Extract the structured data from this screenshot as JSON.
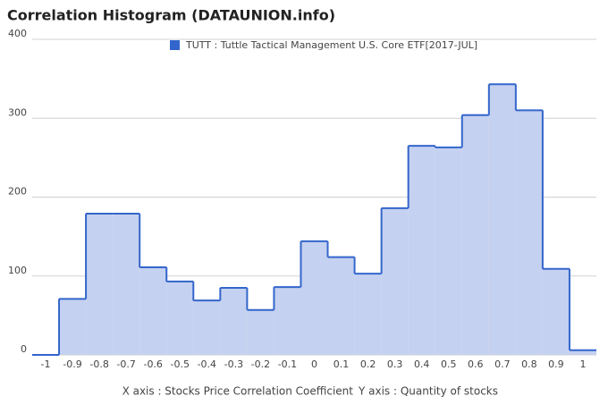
{
  "chart_data": {
    "type": "histogram",
    "title": "Correlation Histogram (DATAUNION.info)",
    "x_label": "X axis : Stocks Price Correlation Coefficient",
    "y_label": "Y axis : Quantity of stocks",
    "series": [
      {
        "name": "TUTT : Tuttle Tactical Management U.S. Core ETF[2017-JUL]",
        "color": "#3366cc",
        "fill": "#c5d1f0",
        "bins": [
          -1.05,
          -0.95,
          -0.85,
          -0.75,
          -0.65,
          -0.55,
          -0.45,
          -0.35,
          -0.25,
          -0.15,
          -0.05,
          0.05,
          0.15,
          0.25,
          0.35,
          0.45,
          0.55,
          0.65,
          0.75,
          0.85,
          0.95,
          1.05
        ],
        "counts": [
          0,
          71,
          179,
          179,
          111,
          93,
          69,
          85,
          57,
          86,
          144,
          124,
          103,
          186,
          265,
          263,
          304,
          343,
          310,
          109,
          6
        ]
      }
    ],
    "xlim": [
      -1.05,
      1.05
    ],
    "xticks": [
      -1,
      -0.9,
      -0.8,
      -0.7,
      -0.6,
      -0.5,
      -0.4,
      -0.3,
      -0.2,
      -0.1,
      0,
      0.1,
      0.2,
      0.3,
      0.4,
      0.5,
      0.6,
      0.7,
      0.8,
      0.9,
      1
    ],
    "ylim": [
      0,
      400
    ],
    "yticks": [
      0,
      100,
      200,
      300,
      400
    ],
    "grid": true,
    "legend": "top"
  }
}
